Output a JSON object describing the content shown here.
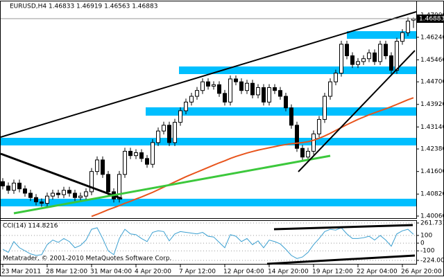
{
  "chart_data": [
    {
      "type": "candlestick",
      "title": "EURUSD,H4 1.46833 1.46919 1.46563 1.46883",
      "categories": [
        "23 Mar 2011",
        null,
        null,
        null,
        null,
        null,
        null,
        null,
        "28 Mar 12:00",
        null,
        null,
        null,
        null,
        null,
        null,
        null,
        "31 Mar 04:00",
        null,
        null,
        null,
        null,
        null,
        null,
        null,
        "4 Apr 20:00",
        null,
        null,
        null,
        null,
        null,
        null,
        null,
        "7 Apr 12:00",
        null,
        null,
        null,
        null,
        null,
        null,
        null,
        "12 Apr 04:00",
        null,
        null,
        null,
        null,
        null,
        null,
        null,
        "14 Apr 20:00",
        null,
        null,
        null,
        null,
        null,
        null,
        null,
        "19 Apr 12:00",
        null,
        null,
        null,
        null,
        null,
        null,
        null,
        "22 Apr 04:00",
        null,
        null,
        null,
        null,
        null,
        null,
        null,
        "26 Apr 20:00",
        null,
        null
      ],
      "open": [
        1.4125,
        1.411,
        1.4095,
        1.412,
        1.41,
        1.4085,
        1.407,
        1.4055,
        1.405,
        1.4075,
        1.4085,
        1.408,
        1.4095,
        1.4085,
        1.407,
        1.4075,
        1.409,
        1.416,
        1.42,
        1.415,
        1.409,
        1.4065,
        1.415,
        1.423,
        1.4215,
        1.4225,
        1.4205,
        1.4185,
        1.426,
        1.43,
        1.432,
        1.426,
        1.433,
        1.437,
        1.44,
        1.442,
        1.444,
        1.447,
        1.4455,
        1.446,
        1.443,
        1.44,
        1.448,
        1.447,
        1.444,
        1.4465,
        1.4425,
        1.445,
        1.44,
        1.445,
        1.444,
        1.442,
        1.438,
        1.432,
        1.424,
        1.421,
        1.423,
        1.429,
        1.434,
        1.442,
        1.447,
        1.45,
        1.46,
        1.456,
        1.453,
        1.454,
        1.455,
        1.457,
        1.454,
        1.46,
        1.456,
        1.451,
        1.461,
        1.464,
        1.46833
      ],
      "high": [
        1.4137,
        1.4122,
        1.4132,
        1.4132,
        1.4112,
        1.4097,
        1.4082,
        1.4067,
        1.4087,
        1.4097,
        1.4097,
        1.4107,
        1.4107,
        1.4097,
        1.4087,
        1.4102,
        1.4172,
        1.4212,
        1.4212,
        1.4162,
        1.4102,
        1.4162,
        1.4242,
        1.4242,
        1.4237,
        1.4237,
        1.4217,
        1.4272,
        1.4312,
        1.4332,
        1.4332,
        1.4342,
        1.4382,
        1.4412,
        1.4432,
        1.4452,
        1.4482,
        1.4482,
        1.4472,
        1.4472,
        1.4442,
        1.4492,
        1.4492,
        1.4482,
        1.4477,
        1.4477,
        1.4462,
        1.4462,
        1.4462,
        1.4462,
        1.4452,
        1.4432,
        1.4392,
        1.4332,
        1.4252,
        1.4242,
        1.4302,
        1.4352,
        1.4432,
        1.4482,
        1.4512,
        1.4612,
        1.4612,
        1.4572,
        1.4552,
        1.4562,
        1.4582,
        1.4582,
        1.4612,
        1.4612,
        1.4572,
        1.4622,
        1.4652,
        1.4692,
        1.46919
      ],
      "low": [
        1.4098,
        1.4083,
        1.4083,
        1.4088,
        1.4073,
        1.4058,
        1.4043,
        1.4038,
        1.4038,
        1.4063,
        1.4068,
        1.4068,
        1.4073,
        1.4058,
        1.4058,
        1.4063,
        1.4078,
        1.4148,
        1.4138,
        1.4078,
        1.4053,
        1.4053,
        1.4138,
        1.4203,
        1.4203,
        1.4193,
        1.4173,
        1.4173,
        1.4248,
        1.4288,
        1.4248,
        1.4248,
        1.4318,
        1.4358,
        1.4388,
        1.4408,
        1.4428,
        1.4443,
        1.4443,
        1.4418,
        1.4388,
        1.4388,
        1.4458,
        1.4428,
        1.4428,
        1.4413,
        1.4413,
        1.4388,
        1.4388,
        1.4428,
        1.4408,
        1.4368,
        1.4308,
        1.4228,
        1.4198,
        1.4198,
        1.4218,
        1.4278,
        1.4328,
        1.4408,
        1.4458,
        1.4488,
        1.4548,
        1.4518,
        1.4518,
        1.4528,
        1.4538,
        1.4528,
        1.4528,
        1.4548,
        1.4498,
        1.4498,
        1.4598,
        1.4628,
        1.46563
      ],
      "close": [
        1.411,
        1.4095,
        1.412,
        1.41,
        1.4085,
        1.407,
        1.4055,
        1.405,
        1.4075,
        1.4085,
        1.408,
        1.4095,
        1.4085,
        1.407,
        1.4075,
        1.409,
        1.416,
        1.42,
        1.415,
        1.409,
        1.4065,
        1.415,
        1.423,
        1.4215,
        1.4225,
        1.4205,
        1.4185,
        1.426,
        1.43,
        1.432,
        1.426,
        1.433,
        1.437,
        1.44,
        1.442,
        1.444,
        1.447,
        1.4455,
        1.446,
        1.443,
        1.44,
        1.448,
        1.447,
        1.444,
        1.4465,
        1.4425,
        1.445,
        1.44,
        1.445,
        1.444,
        1.442,
        1.438,
        1.432,
        1.424,
        1.421,
        1.423,
        1.429,
        1.434,
        1.442,
        1.447,
        1.45,
        1.46,
        1.456,
        1.453,
        1.454,
        1.455,
        1.457,
        1.454,
        1.46,
        1.456,
        1.451,
        1.461,
        1.464,
        1.468,
        1.46883
      ],
      "candle_color": "#000000",
      "moving_average": {
        "color": "#e8541c",
        "values": [
          null,
          null,
          null,
          null,
          null,
          null,
          null,
          null,
          null,
          null,
          null,
          null,
          null,
          null,
          null,
          null,
          1.4005,
          1.4012,
          1.402,
          1.4028,
          1.4035,
          1.4042,
          1.405,
          1.4057,
          1.4065,
          1.4072,
          1.408,
          1.4088,
          1.4097,
          1.4106,
          1.4115,
          1.4124,
          1.4133,
          1.4142,
          1.415,
          1.4158,
          1.4166,
          1.4174,
          1.4182,
          1.419,
          1.4197,
          1.4205,
          1.4212,
          1.4218,
          1.4224,
          1.4229,
          1.4234,
          1.4238,
          1.4242,
          1.4246,
          1.425,
          1.4253,
          1.4256,
          1.4258,
          1.426,
          1.4263,
          1.4268,
          1.4275,
          1.4283,
          1.4292,
          1.4302,
          1.4312,
          1.4322,
          1.4331,
          1.434,
          1.4348,
          1.4356,
          1.4363,
          1.437,
          1.4377,
          1.4384,
          1.4392,
          1.44,
          1.4408,
          1.4415
        ]
      },
      "ylim": [
        1.40012,
        1.47241
      ],
      "yticks": [
        {
          "value": 1.47,
          "label": "1.47000"
        },
        {
          "value": 1.4624,
          "label": "1.46240"
        },
        {
          "value": 1.4546,
          "label": "1.45460"
        },
        {
          "value": 1.447,
          "label": "1.44700"
        },
        {
          "value": 1.4392,
          "label": "1.43920"
        },
        {
          "value": 1.4314,
          "label": "1.43140"
        },
        {
          "value": 1.4238,
          "label": "1.42380"
        },
        {
          "value": 1.416,
          "label": "1.41600"
        },
        {
          "value": 1.4082,
          "label": "1.40820"
        },
        {
          "value": 1.4006,
          "label": "1.40060"
        }
      ]
    },
    {
      "type": "line",
      "title": "CCI(14) 114.8216",
      "color": "#3a9fd0",
      "values": [
        -80,
        -120,
        20,
        -60,
        -100,
        -140,
        -160,
        -150,
        -20,
        40,
        10,
        60,
        20,
        -60,
        -30,
        40,
        180,
        200,
        60,
        -100,
        -150,
        60,
        180,
        120,
        110,
        60,
        20,
        140,
        160,
        150,
        30,
        120,
        150,
        140,
        130,
        120,
        140,
        90,
        80,
        10,
        -60,
        110,
        90,
        20,
        60,
        -20,
        30,
        -60,
        40,
        20,
        -10,
        -80,
        -160,
        -200,
        -180,
        -120,
        -20,
        60,
        150,
        180,
        170,
        200,
        120,
        60,
        60,
        70,
        90,
        40,
        100,
        40,
        -40,
        120,
        160,
        180,
        114.8216
      ],
      "ylim": [
        -224.0087,
        261.7319
      ],
      "yticks": [
        261.7319,
        100,
        0,
        -100,
        -224.0087
      ],
      "annotation": "Metatrader, © 2001-2010 MetaQuotes Software Corp."
    }
  ]
}
